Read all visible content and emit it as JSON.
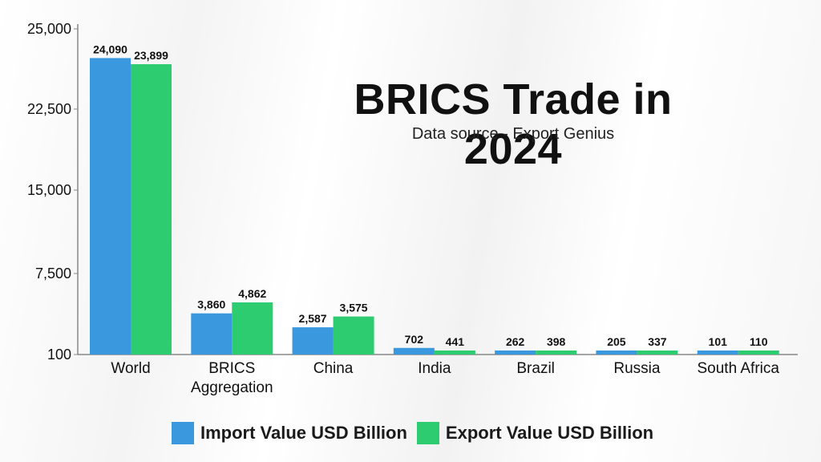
{
  "chart_data": {
    "type": "bar",
    "title": "BRICS Trade in 2024",
    "subtitle": "Data source - Export Genius",
    "categories": [
      "World",
      "BRICS Aggregation",
      "China",
      "India",
      "Brazil",
      "Russia",
      "South Africa"
    ],
    "category_lines": [
      [
        "World"
      ],
      [
        "BRICS",
        "Aggregation"
      ],
      [
        "China"
      ],
      [
        "India"
      ],
      [
        "Brazil"
      ],
      [
        "Russia"
      ],
      [
        "South Africa"
      ]
    ],
    "series": [
      {
        "name": "Import Value USD Billion",
        "color": "#3a98df",
        "values": [
          24090,
          3860,
          2587,
          702,
          262,
          205,
          101
        ],
        "labels": [
          "24,090",
          "3,860",
          "2,587",
          "702",
          "262",
          "205",
          "101"
        ]
      },
      {
        "name": "Export Value USD Billion",
        "color": "#2ecc71",
        "values": [
          23899,
          4862,
          3575,
          441,
          398,
          337,
          110
        ],
        "labels": [
          "23,899",
          "4,862",
          "3,575",
          "441",
          "398",
          "337",
          "110"
        ]
      }
    ],
    "ylim": [
      100,
      25000
    ],
    "yticks": [
      100,
      7500,
      15000,
      22500,
      25000
    ],
    "ytick_labels": [
      "100",
      "7,500",
      "15,000",
      "22,500",
      "25,000"
    ],
    "grid": false,
    "legend_position": "bottom"
  }
}
